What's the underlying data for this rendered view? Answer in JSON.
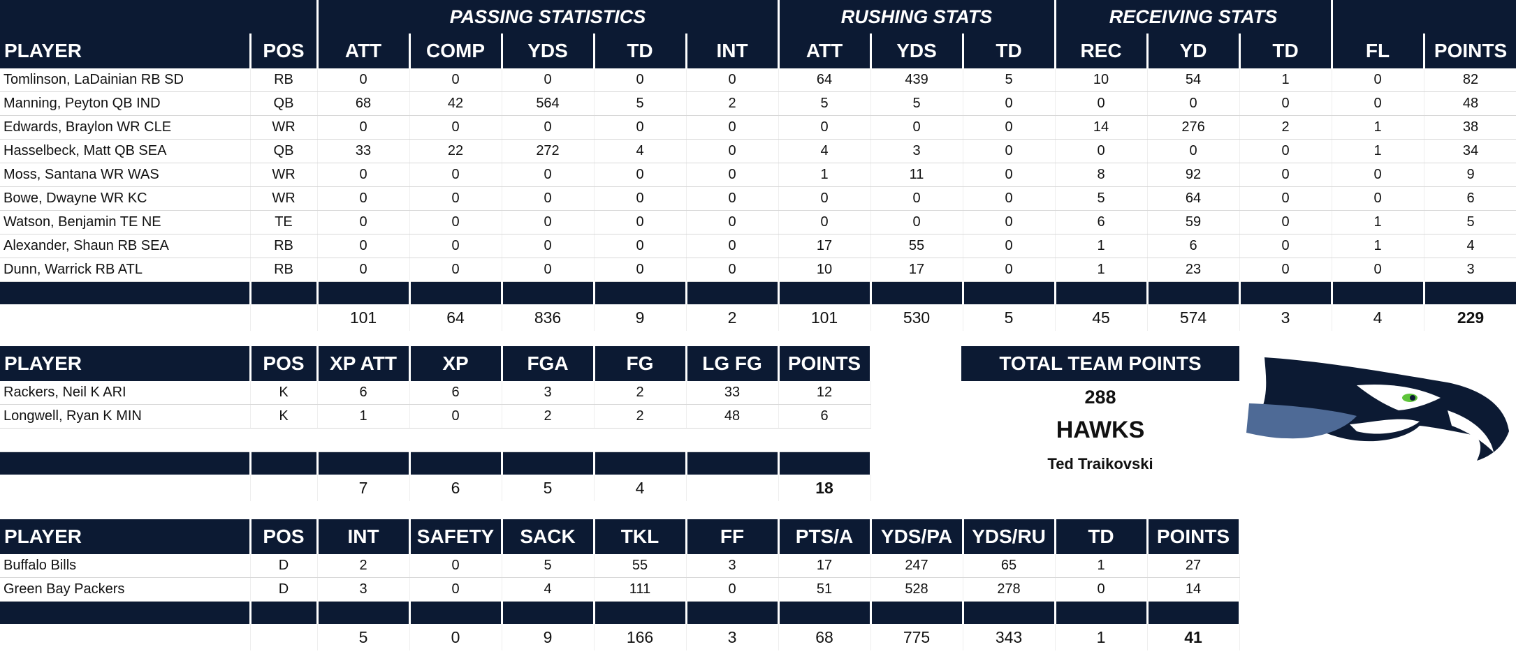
{
  "offense": {
    "groups": [
      "PASSING STATISTICS",
      "RUSHING STATS",
      "RECEIVING STATS"
    ],
    "headers": [
      "PLAYER",
      "POS",
      "ATT",
      "COMP",
      "YDS",
      "TD",
      "INT",
      "ATT",
      "YDS",
      "TD",
      "REC",
      "YD",
      "TD",
      "FL",
      "POINTS"
    ],
    "rows": [
      [
        "Tomlinson, LaDainian RB SD",
        "RB",
        "0",
        "0",
        "0",
        "0",
        "0",
        "64",
        "439",
        "5",
        "10",
        "54",
        "1",
        "0",
        "82"
      ],
      [
        "Manning, Peyton QB IND",
        "QB",
        "68",
        "42",
        "564",
        "5",
        "2",
        "5",
        "5",
        "0",
        "0",
        "0",
        "0",
        "0",
        "48"
      ],
      [
        "Edwards, Braylon WR CLE",
        "WR",
        "0",
        "0",
        "0",
        "0",
        "0",
        "0",
        "0",
        "0",
        "14",
        "276",
        "2",
        "1",
        "38"
      ],
      [
        "Hasselbeck, Matt QB SEA",
        "QB",
        "33",
        "22",
        "272",
        "4",
        "0",
        "4",
        "3",
        "0",
        "0",
        "0",
        "0",
        "1",
        "34"
      ],
      [
        "Moss, Santana WR WAS",
        "WR",
        "0",
        "0",
        "0",
        "0",
        "0",
        "1",
        "11",
        "0",
        "8",
        "92",
        "0",
        "0",
        "9"
      ],
      [
        "Bowe, Dwayne WR KC",
        "WR",
        "0",
        "0",
        "0",
        "0",
        "0",
        "0",
        "0",
        "0",
        "5",
        "64",
        "0",
        "0",
        "6"
      ],
      [
        "Watson, Benjamin TE NE",
        "TE",
        "0",
        "0",
        "0",
        "0",
        "0",
        "0",
        "0",
        "0",
        "6",
        "59",
        "0",
        "1",
        "5"
      ],
      [
        "Alexander, Shaun RB SEA",
        "RB",
        "0",
        "0",
        "0",
        "0",
        "0",
        "17",
        "55",
        "0",
        "1",
        "6",
        "0",
        "1",
        "4"
      ],
      [
        "Dunn, Warrick RB ATL",
        "RB",
        "0",
        "0",
        "0",
        "0",
        "0",
        "10",
        "17",
        "0",
        "1",
        "23",
        "0",
        "0",
        "3"
      ]
    ],
    "totals": [
      "",
      "",
      "101",
      "64",
      "836",
      "9",
      "2",
      "101",
      "530",
      "5",
      "45",
      "574",
      "3",
      "4",
      "229"
    ]
  },
  "kicking": {
    "headers": [
      "PLAYER",
      "POS",
      "XP ATT",
      "XP",
      "FGA",
      "FG",
      "LG FG",
      "POINTS"
    ],
    "rows": [
      [
        "Rackers, Neil K ARI",
        "K",
        "6",
        "6",
        "3",
        "2",
        "33",
        "12"
      ],
      [
        "Longwell, Ryan K MIN",
        "K",
        "1",
        "0",
        "2",
        "2",
        "48",
        "6"
      ]
    ],
    "totals": [
      "",
      "",
      "7",
      "6",
      "5",
      "4",
      "",
      "18"
    ]
  },
  "defense": {
    "headers": [
      "PLAYER",
      "POS",
      "INT",
      "SAFETY",
      "SACK",
      "TKL",
      "FF",
      "PTS/A",
      "YDS/PA",
      "YDS/RU",
      "TD",
      "POINTS"
    ],
    "rows": [
      [
        "Buffalo Bills",
        "D",
        "2",
        "0",
        "5",
        "55",
        "3",
        "17",
        "247",
        "65",
        "1",
        "27"
      ],
      [
        "Green Bay Packers",
        "D",
        "3",
        "0",
        "4",
        "111",
        "0",
        "51",
        "528",
        "278",
        "0",
        "14"
      ]
    ],
    "totals": [
      "",
      "",
      "5",
      "0",
      "9",
      "166",
      "3",
      "68",
      "775",
      "343",
      "1",
      "41"
    ]
  },
  "team": {
    "header": "TOTAL TEAM POINTS",
    "points": "288",
    "name": "HAWKS",
    "owner": "Ted Traikovski"
  },
  "colors": {
    "navy": "#0c1a33",
    "slate": "#4e6a96",
    "green": "#5ec43a"
  },
  "logo_icon": "seahawks-logo-icon"
}
